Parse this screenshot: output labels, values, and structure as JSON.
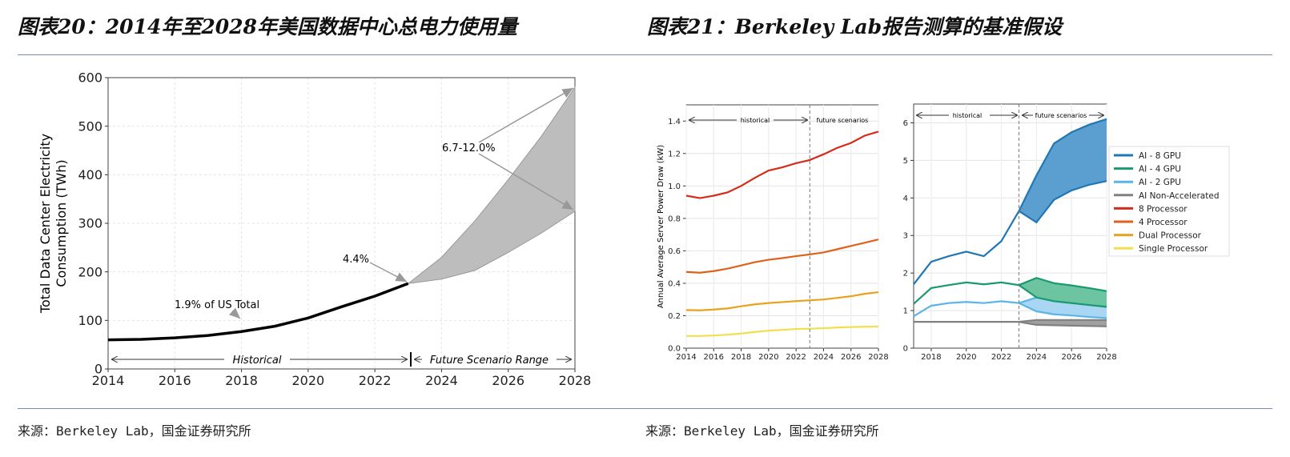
{
  "titles": {
    "left": "图表20：2014年至2028年美国数据中心总电力使用量",
    "right": "图表21：Berkeley Lab报告测算的基准假设"
  },
  "sources": {
    "left": "来源：Berkeley Lab，国金证券研究所",
    "right": "来源：Berkeley Lab，国金证券研究所"
  },
  "chart_data": [
    {
      "type": "area",
      "ylabel": "Total Data Center Electricity Consumption (TWh)",
      "ylim": [
        0,
        600
      ],
      "xlim": [
        2014,
        2028
      ],
      "xticks": [
        2014,
        2016,
        2018,
        2020,
        2022,
        2024,
        2026,
        2028
      ],
      "yticks": [
        0,
        100,
        200,
        300,
        400,
        500,
        600
      ],
      "historical": {
        "x": [
          2014,
          2015,
          2016,
          2017,
          2018,
          2019,
          2020,
          2021,
          2022,
          2023
        ],
        "y": [
          60,
          61,
          64,
          69,
          77,
          88,
          105,
          128,
          150,
          176
        ]
      },
      "future": {
        "x": [
          2023,
          2024,
          2025,
          2026,
          2027,
          2028
        ],
        "upper": [
          176,
          230,
          305,
          390,
          480,
          580
        ],
        "lower": [
          176,
          185,
          203,
          240,
          280,
          325
        ]
      },
      "annotations": {
        "growth_future": "6.7-12.0%",
        "share_2023": "4.4%",
        "share_2018": "1.9% of US Total",
        "historical": "Historical",
        "future": "Future Scenario Range"
      }
    },
    {
      "type": "line",
      "ylabel": "Annual Average Server Power Draw (kW)",
      "ylim": [
        0,
        1.5
      ],
      "xlim": [
        2014,
        2028
      ],
      "xticks": [
        2014,
        2016,
        2018,
        2020,
        2022,
        2024,
        2026,
        2028
      ],
      "yticks": [
        0,
        0.2,
        0.4,
        0.6,
        0.8,
        1.0,
        1.2,
        1.4
      ],
      "x": [
        2014,
        2015,
        2016,
        2017,
        2018,
        2019,
        2020,
        2021,
        2022,
        2023,
        2024,
        2025,
        2026,
        2027,
        2028
      ],
      "series": [
        {
          "name": "8 Processor",
          "color": "#d62a1a",
          "values": [
            0.94,
            0.925,
            0.94,
            0.96,
            1.0,
            1.05,
            1.095,
            1.115,
            1.14,
            1.16,
            1.195,
            1.235,
            1.265,
            1.31,
            1.335
          ]
        },
        {
          "name": "4 Processor",
          "color": "#e0621a",
          "values": [
            0.47,
            0.465,
            0.475,
            0.49,
            0.51,
            0.53,
            0.545,
            0.555,
            0.567,
            0.578,
            0.59,
            0.61,
            0.63,
            0.65,
            0.67
          ]
        },
        {
          "name": "Dual Processor",
          "color": "#eaa21c",
          "values": [
            0.235,
            0.233,
            0.238,
            0.245,
            0.258,
            0.27,
            0.278,
            0.284,
            0.29,
            0.295,
            0.3,
            0.31,
            0.32,
            0.335,
            0.345
          ]
        },
        {
          "name": "Single Processor",
          "color": "#f0e050",
          "values": [
            0.075,
            0.075,
            0.078,
            0.083,
            0.09,
            0.1,
            0.108,
            0.113,
            0.118,
            0.12,
            0.123,
            0.127,
            0.13,
            0.132,
            0.133
          ]
        }
      ],
      "annotations": {
        "historical": "historical",
        "future": "future scenarios"
      }
    },
    {
      "type": "area",
      "ylim": [
        0,
        6.5
      ],
      "xlim": [
        2017,
        2028
      ],
      "xticks": [
        2018,
        2020,
        2022,
        2024,
        2026,
        2028
      ],
      "yticks": [
        0,
        1,
        2,
        3,
        4,
        5,
        6
      ],
      "hist_x": [
        2017,
        2018,
        2019,
        2020,
        2021,
        2022,
        2023
      ],
      "fut_x": [
        2023,
        2024,
        2025,
        2026,
        2027,
        2028
      ],
      "series": [
        {
          "name": "AI - 8 GPU",
          "color": "#1f77b4",
          "fill": "#5b9fd0",
          "hist": [
            1.7,
            2.3,
            2.45,
            2.57,
            2.45,
            2.85,
            3.65
          ],
          "upper": [
            3.65,
            4.6,
            5.45,
            5.75,
            5.95,
            6.1
          ],
          "lower": [
            3.65,
            3.35,
            3.95,
            4.2,
            4.35,
            4.45
          ]
        },
        {
          "name": "AI - 4 GPU",
          "color": "#1a9a6c",
          "fill": "#6cc4a0",
          "hist": [
            1.18,
            1.6,
            1.68,
            1.75,
            1.7,
            1.75,
            1.68
          ],
          "upper": [
            1.68,
            1.87,
            1.73,
            1.67,
            1.6,
            1.52
          ],
          "lower": [
            1.68,
            1.35,
            1.25,
            1.2,
            1.15,
            1.1
          ]
        },
        {
          "name": "AI - 2 GPU",
          "color": "#5ab4e8",
          "fill": "#a9d6f2",
          "hist": [
            0.85,
            1.13,
            1.2,
            1.23,
            1.2,
            1.25,
            1.2
          ],
          "upper": [
            1.2,
            1.35,
            1.25,
            1.2,
            1.15,
            1.1
          ],
          "lower": [
            1.2,
            0.98,
            0.9,
            0.87,
            0.83,
            0.8
          ]
        },
        {
          "name": "AI Non-Accelerated",
          "color": "#808080",
          "fill": "#a0a0a0",
          "hist": [
            0.7,
            0.7,
            0.7,
            0.7,
            0.7,
            0.7,
            0.7
          ],
          "upper": [
            0.7,
            0.75,
            0.75,
            0.75,
            0.75,
            0.75
          ],
          "lower": [
            0.7,
            0.62,
            0.61,
            0.6,
            0.59,
            0.58
          ]
        }
      ],
      "legend": [
        "AI - 8 GPU",
        "AI - 4 GPU",
        "AI - 2 GPU",
        "AI Non-Accelerated",
        "8 Processor",
        "4 Processor",
        "Dual Processor",
        "Single Processor"
      ],
      "legend_colors": [
        "#1f77b4",
        "#1a9a6c",
        "#5ab4e8",
        "#808080",
        "#d62a1a",
        "#e0621a",
        "#eaa21c",
        "#f0e050"
      ],
      "legend_position": "right",
      "annotations": {
        "historical": "historical",
        "future": "future scenarios"
      }
    }
  ]
}
